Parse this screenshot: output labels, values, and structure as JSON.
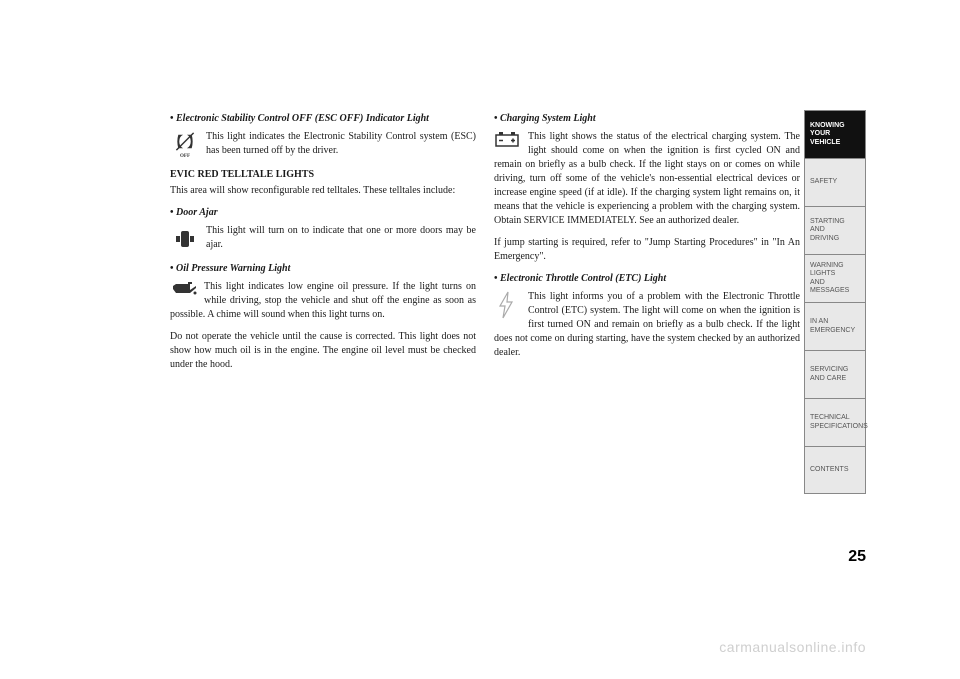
{
  "col1": {
    "esc_off": {
      "title": "Electronic Stability Control OFF (ESC OFF) Indicator Light",
      "text": "This light indicates the Electronic Stability Control system (ESC) has been turned off by the driver."
    },
    "heading": "EVIC RED TELLTALE LIGHTS",
    "heading_para": "This area will show reconfigurable red telltales. These telltales include:",
    "door_ajar": {
      "title": "Door Ajar",
      "text": "This light will turn on to indicate that one or more doors may be ajar."
    },
    "oil": {
      "title": "Oil Pressure Warning Light",
      "text1": "This light indicates low engine oil pressure. If the light turns on while driving, stop the vehicle and shut off the engine as soon as possible. A chime will sound when this light turns on.",
      "text2": "Do not operate the vehicle until the cause is corrected. This light does not show how much oil is in the engine. The engine oil level must be checked under the hood."
    }
  },
  "col2": {
    "charging": {
      "title": "Charging System Light",
      "text1": "This light shows the status of the electrical charging system. The light should come on when the ignition is first cycled ON and remain on briefly as a bulb check. If the light stays on or comes on while driving, turn off some of the vehicle's non-essential electrical devices or increase engine speed (if at idle). If the charging system light remains on, it means that the vehicle is experiencing a problem with the charging system. Obtain SERVICE IMMEDIATELY. See an authorized dealer.",
      "text2": "If jump starting is required, refer to \"Jump Starting Procedures\" in \"In An Emergency\"."
    },
    "etc": {
      "title": "Electronic Throttle Control (ETC) Light",
      "text": "This light informs you of a problem with the Electronic Throttle Control (ETC) system. The light will come on when the ignition is first turned ON and remain on briefly as a bulb check. If the light does not come on during starting, have the system checked by an authorized dealer."
    }
  },
  "sidebar": {
    "tabs": [
      {
        "label": "KNOWING\nYOUR\nVEHICLE",
        "active": true
      },
      {
        "label": "SAFETY",
        "active": false
      },
      {
        "label": "STARTING\nAND\nDRIVING",
        "active": false
      },
      {
        "label": "WARNING\nLIGHTS\nAND\nMESSAGES",
        "active": false
      },
      {
        "label": "IN AN\nEMERGENCY",
        "active": false
      },
      {
        "label": "SERVICING\nAND CARE",
        "active": false
      },
      {
        "label": "TECHNICAL\nSPECIFICATIONS",
        "active": false
      },
      {
        "label": "CONTENTS",
        "active": false
      }
    ]
  },
  "page_number": "25",
  "watermark": "carmanualsonline.info",
  "colors": {
    "text": "#1a1a1a",
    "tab_inactive_bg": "#e8e8e8",
    "tab_inactive_text": "#555555",
    "tab_active_bg": "#111111",
    "tab_active_text": "#ffffff",
    "tab_border": "#888888",
    "watermark": "#cfcfcf"
  }
}
